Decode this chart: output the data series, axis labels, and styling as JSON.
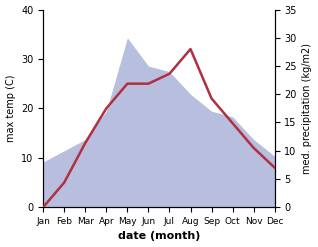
{
  "months": [
    "Jan",
    "Feb",
    "Mar",
    "Apr",
    "May",
    "Jun",
    "Jul",
    "Aug",
    "Sep",
    "Oct",
    "Nov",
    "Dec"
  ],
  "x": [
    0,
    1,
    2,
    3,
    4,
    5,
    6,
    7,
    8,
    9,
    10,
    11
  ],
  "temperature": [
    0,
    5,
    13,
    20,
    25,
    25,
    27,
    32,
    22,
    17,
    12,
    8
  ],
  "precipitation": [
    8,
    10,
    12,
    17,
    30,
    25,
    24,
    20,
    17,
    16,
    12,
    9
  ],
  "temp_color": "#b03040",
  "precip_fill_color": "#b8bede",
  "temp_ylim": [
    0,
    40
  ],
  "precip_ylim": [
    0,
    35
  ],
  "temp_yticks": [
    0,
    10,
    20,
    30,
    40
  ],
  "precip_yticks": [
    0,
    5,
    10,
    15,
    20,
    25,
    30,
    35
  ],
  "xlabel": "date (month)",
  "ylabel_left": "max temp (C)",
  "ylabel_right": "med. precipitation (kg/m2)",
  "figsize": [
    3.18,
    2.47
  ],
  "dpi": 100
}
